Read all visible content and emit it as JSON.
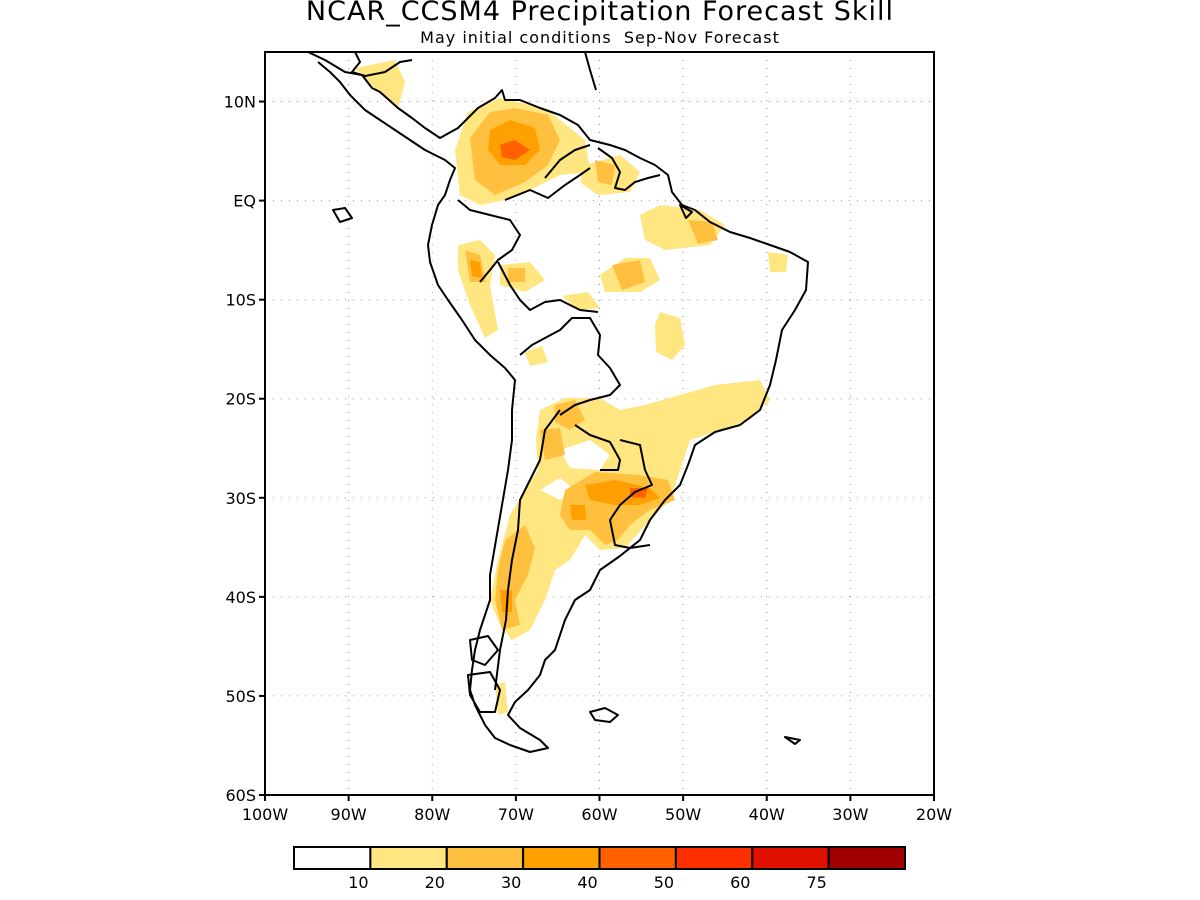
{
  "header": {
    "title": "NCAR_CCSM4 Precipitation Forecast Skill",
    "subtitle": "May initial conditions  Sep-Nov Forecast"
  },
  "map": {
    "lon_range": [
      -100,
      -20
    ],
    "lat_range": [
      -60,
      15
    ],
    "lat_labels": [
      {
        "lat": 10,
        "label": "10N"
      },
      {
        "lat": 0,
        "label": "EQ"
      },
      {
        "lat": -10,
        "label": "10S"
      },
      {
        "lat": -20,
        "label": "20S"
      },
      {
        "lat": -30,
        "label": "30S"
      },
      {
        "lat": -40,
        "label": "40S"
      },
      {
        "lat": -50,
        "label": "50S"
      },
      {
        "lat": -60,
        "label": "60S"
      }
    ],
    "lon_labels": [
      {
        "lon": -100,
        "label": "100W"
      },
      {
        "lon": -90,
        "label": "90W"
      },
      {
        "lon": -80,
        "label": "80W"
      },
      {
        "lon": -70,
        "label": "70W"
      },
      {
        "lon": -60,
        "label": "60W"
      },
      {
        "lon": -50,
        "label": "50W"
      },
      {
        "lon": -40,
        "label": "40W"
      },
      {
        "lon": -30,
        "label": "30W"
      },
      {
        "lon": -20,
        "label": "20W"
      }
    ],
    "grid": true
  },
  "colorbar": {
    "colors": [
      "#ffffff",
      "#ffe680",
      "#ffc040",
      "#ffa000",
      "#ff6000",
      "#ff3000",
      "#e01000",
      "#a00000"
    ],
    "labels": [
      "10",
      "20",
      "30",
      "40",
      "50",
      "60",
      "75"
    ]
  }
}
